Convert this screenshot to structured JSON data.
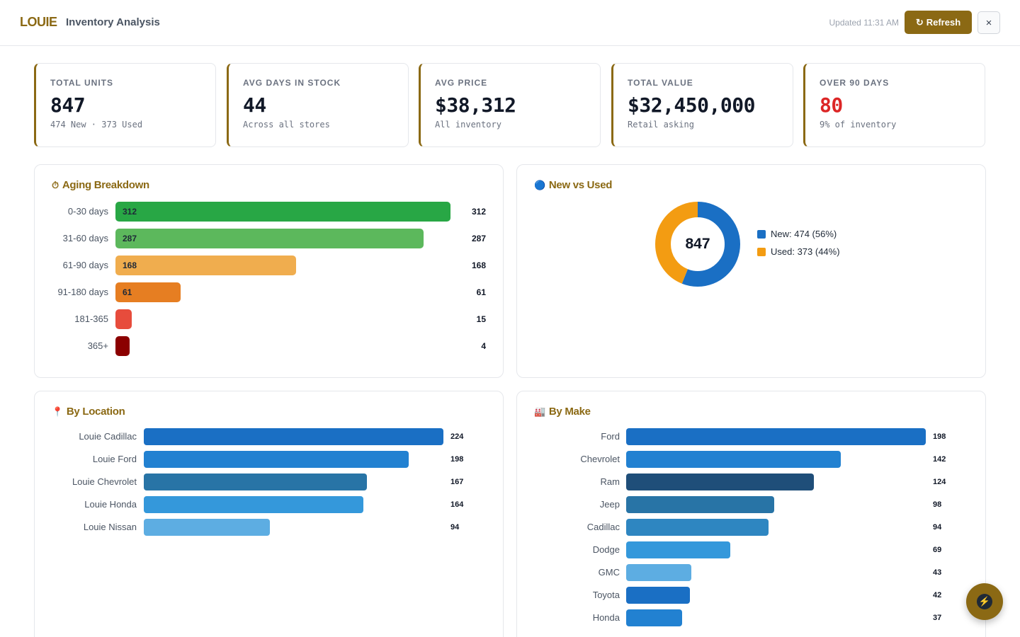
{
  "header": {
    "brand": "LOUIE",
    "subtitle": "Inventory Analysis",
    "updated": "Updated 11:31 AM",
    "refresh_icon": "↻",
    "refresh_label": "Refresh",
    "close_label": "×"
  },
  "kpis": [
    {
      "label": "TOTAL UNITS",
      "value": "847",
      "sub": "474 New · 373 Used"
    },
    {
      "label": "AVG DAYS IN STOCK",
      "value": "44",
      "sub": "Across all stores"
    },
    {
      "label": "AVG PRICE",
      "value": "$38,312",
      "sub": "All inventory"
    },
    {
      "label": "TOTAL VALUE",
      "value": "$32,450,000",
      "sub": "Retail asking"
    },
    {
      "label": "OVER 90 DAYS",
      "value": "80",
      "sub": "9% of inventory"
    }
  ],
  "aging": {
    "title": "Aging Breakdown",
    "icon": "⏱",
    "rows": [
      {
        "label": "0-30 days",
        "value": 312,
        "inbar": "312",
        "color": "#28a745"
      },
      {
        "label": "31-60 days",
        "value": 287,
        "inbar": "287",
        "color": "#5cb85c"
      },
      {
        "label": "61-90 days",
        "value": 168,
        "inbar": "168",
        "color": "#f0ad4e"
      },
      {
        "label": "91-180 days",
        "value": 61,
        "inbar": "61",
        "color": "#e67e22"
      },
      {
        "label": "181-365",
        "value": 15,
        "inbar": "",
        "color": "#e74c3c"
      },
      {
        "label": "365+",
        "value": 4,
        "inbar": "",
        "color": "#8b0000"
      }
    ]
  },
  "new_vs_used": {
    "title": "New vs Used",
    "icon": "🔵",
    "total": "847",
    "new_value": 474,
    "used_value": 373,
    "new_label": "New: 474 (56%)",
    "used_label": "Used: 373 (44%)",
    "new_color": "#1a6fc4",
    "used_color": "#f39c12"
  },
  "by_location": {
    "title": "By Location",
    "icon": "📍",
    "rows": [
      {
        "label": "Louie Cadillac",
        "value": 224,
        "color": "#1a6fc4"
      },
      {
        "label": "Louie Ford",
        "value": 198,
        "color": "#2281d1"
      },
      {
        "label": "Louie Chevrolet",
        "value": 167,
        "color": "#2874a6"
      },
      {
        "label": "Louie Honda",
        "value": 164,
        "color": "#3498db"
      },
      {
        "label": "Louie Nissan",
        "value": 94,
        "color": "#5dade2"
      }
    ]
  },
  "by_make": {
    "title": "By Make",
    "icon": "🏭",
    "rows": [
      {
        "label": "Ford",
        "value": 198,
        "color": "#1a6fc4"
      },
      {
        "label": "Chevrolet",
        "value": 142,
        "color": "#2281d1"
      },
      {
        "label": "Ram",
        "value": 124,
        "color": "#1f4e79"
      },
      {
        "label": "Jeep",
        "value": 98,
        "color": "#2874a6"
      },
      {
        "label": "Cadillac",
        "value": 94,
        "color": "#2e86c1"
      },
      {
        "label": "Dodge",
        "value": 69,
        "color": "#3498db"
      },
      {
        "label": "GMC",
        "value": 43,
        "color": "#5dade2"
      },
      {
        "label": "Toyota",
        "value": 42,
        "color": "#1a6fc4"
      },
      {
        "label": "Honda",
        "value": 37,
        "color": "#2281d1"
      }
    ]
  },
  "fab_icon": "⚡"
}
